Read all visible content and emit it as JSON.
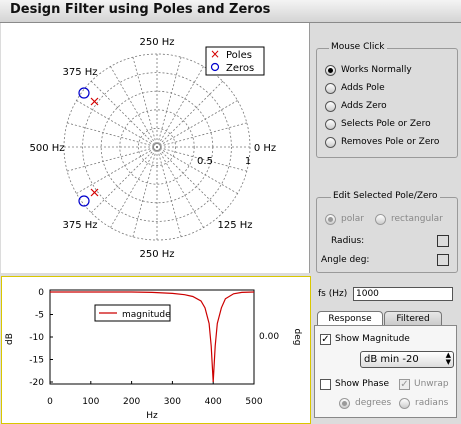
{
  "window": {
    "title": "Design Filter using Poles and Zeros"
  },
  "polar": {
    "labels": {
      "top": "250 Hz",
      "upper_left": "375 Hz",
      "left": "500 Hz",
      "right": "0 Hz",
      "lower_left": "375 Hz",
      "lower_right": "125 Hz",
      "bottom": "250 Hz",
      "half": "0.5",
      "one": "1"
    },
    "legend": {
      "poles": "Poles",
      "zeros": "Zeros",
      "pole_symbol": "×",
      "zero_symbol": "○"
    },
    "colors": {
      "pole": "#d40000",
      "zero": "#0000cc",
      "grid": "#777777"
    }
  },
  "mouse_click": {
    "title": "Mouse Click",
    "options": [
      {
        "label": "Works Normally",
        "selected": true
      },
      {
        "label": "Adds Pole",
        "selected": false
      },
      {
        "label": "Adds Zero",
        "selected": false
      },
      {
        "label": "Selects Pole or Zero",
        "selected": false
      },
      {
        "label": "Removes Pole or Zero",
        "selected": false
      }
    ]
  },
  "edit_selected": {
    "title": "Edit Selected Pole/Zero",
    "polar_label": "polar",
    "rectangular_label": "rectangular",
    "radius_label": "Radius:",
    "angle_label": "Angle deg:"
  },
  "fs": {
    "label": "fs (Hz)",
    "value": "1000"
  },
  "tabs": {
    "response": "Response",
    "filtered": "Filtered"
  },
  "response_tab": {
    "show_magnitude": "Show Magnitude",
    "show_magnitude_checked": true,
    "db_min": "dB min -20",
    "show_phase": "Show Phase",
    "show_phase_checked": false,
    "unwrap": "Unwrap",
    "unwrap_checked": true,
    "degrees": "degrees",
    "radians": "radians"
  },
  "chart_data": {
    "type": "line",
    "xlabel": "Hz",
    "ylabel": "dB",
    "y2label": "deg",
    "xlim": [
      0,
      500
    ],
    "ylim": [
      -20,
      0
    ],
    "xticks": [
      "0",
      "100",
      "200",
      "300",
      "400",
      "500"
    ],
    "yticks": [
      "0",
      "-5",
      "-10",
      "-15",
      "-20"
    ],
    "y2ticks": [
      "0.00"
    ],
    "legend": "magnitude",
    "series": [
      {
        "name": "magnitude",
        "color": "#cc0000",
        "x": [
          0,
          50,
          100,
          150,
          200,
          250,
          300,
          330,
          350,
          370,
          380,
          390,
          395,
          400,
          405,
          410,
          420,
          430,
          450,
          470,
          500
        ],
        "y": [
          0,
          0,
          0,
          0,
          0,
          -0.1,
          -0.3,
          -0.6,
          -1.0,
          -2.0,
          -3.5,
          -7.0,
          -12.0,
          -20.0,
          -12.0,
          -7.0,
          -3.5,
          -1.5,
          -0.4,
          -0.1,
          0
        ]
      }
    ]
  }
}
